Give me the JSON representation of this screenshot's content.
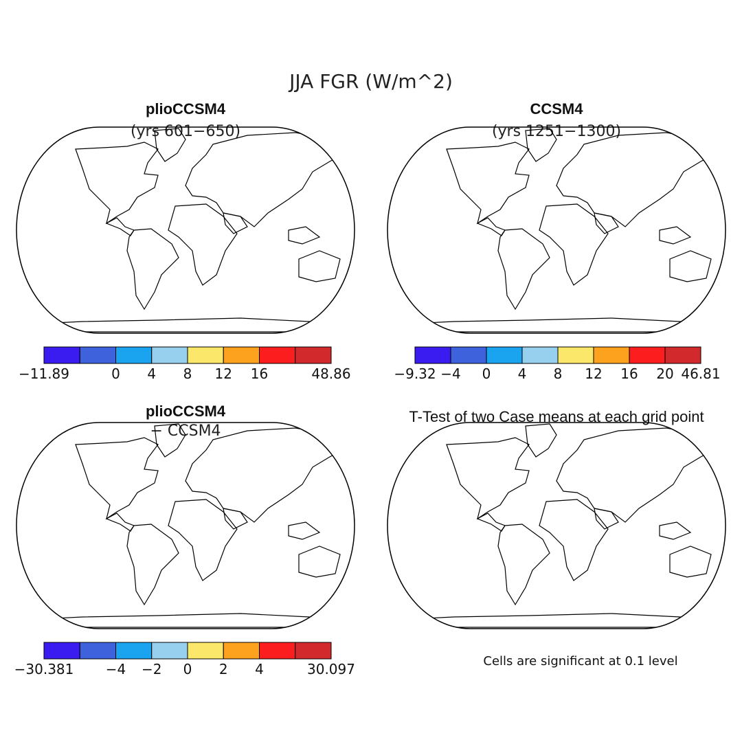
{
  "figure": {
    "title": "JJA FGR (W/m^2)",
    "footnote": "Cells are significant at 0.1 level"
  },
  "panels": [
    {
      "title": "plioCCSM4",
      "subtitle": "(yrs 601−650)",
      "kind": "field",
      "colorbar": {
        "colors": [
          "#3a1cf0",
          "#3d62dc",
          "#1aa4f0",
          "#96d0ee",
          "#fbe86a",
          "#fca21e",
          "#fc1e1e",
          "#d2292c"
        ],
        "labels": [
          "−11.89",
          "",
          "0",
          "4",
          "8",
          "12",
          "16",
          "",
          "48.86"
        ]
      }
    },
    {
      "title": "CCSM4",
      "subtitle": "(yrs 1251−1300)",
      "kind": "field",
      "colorbar": {
        "colors": [
          "#3a1cf0",
          "#3d62dc",
          "#1aa4f0",
          "#96d0ee",
          "#fbe86a",
          "#fca21e",
          "#fc1e1e",
          "#d2292c"
        ],
        "labels": [
          "−9.32",
          "−4",
          "0",
          "4",
          "8",
          "12",
          "16",
          "20",
          "46.81"
        ]
      }
    },
    {
      "title": "plioCCSM4",
      "subtitle": "− CCSM4",
      "kind": "difference",
      "colorbar": {
        "colors": [
          "#3a1cf0",
          "#3d62dc",
          "#1aa4f0",
          "#96d0ee",
          "#fbe86a",
          "#fca21e",
          "#fc1e1e",
          "#d2292c"
        ],
        "labels": [
          "−30.381",
          "",
          "−4",
          "−2",
          "0",
          "2",
          "4",
          "",
          "30.097"
        ]
      }
    },
    {
      "title": "T-Test of two Case means at each grid point",
      "subtitle": "",
      "kind": "significance",
      "colorbar": null
    }
  ],
  "colors": {
    "significant": "#fc1010",
    "coastline": "#000000"
  }
}
